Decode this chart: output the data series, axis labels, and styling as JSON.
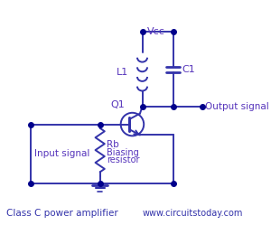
{
  "bg_color": "#ffffff",
  "line_color": "#3333aa",
  "dot_color": "#00008b",
  "text_color": "#5533bb",
  "title_text": "Class C power amplifier",
  "website_text": "www.circuitstoday.com",
  "vcc_label": "Vcc",
  "l1_label": "L1",
  "c1_label": "C1",
  "q1_label": "Q1",
  "rb_label": "Rb",
  "bias_label1": "Biasing",
  "bias_label2": "resistor",
  "input_label": "Input signal",
  "output_label": "Output signal",
  "fig_width": 3.0,
  "fig_height": 2.7,
  "dpi": 100
}
